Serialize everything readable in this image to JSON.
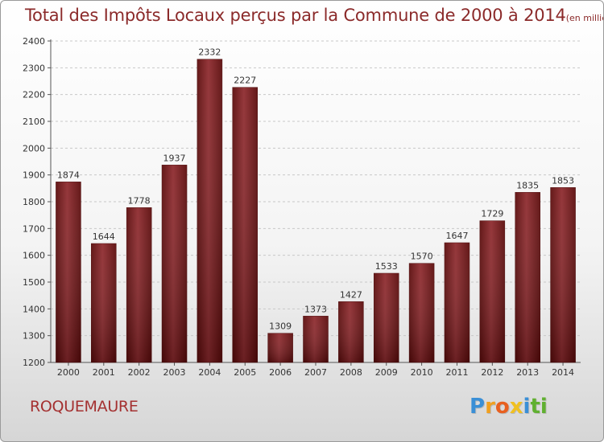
{
  "chart_data": {
    "type": "bar",
    "title": "Total des Impôts Locaux perçus par la Commune de 2000 à 2014",
    "unit": "(en milliers d'€)",
    "categories": [
      "2000",
      "2001",
      "2002",
      "2003",
      "2004",
      "2005",
      "2006",
      "2007",
      "2008",
      "2009",
      "2010",
      "2011",
      "2012",
      "2013",
      "2014"
    ],
    "values": [
      1874,
      1644,
      1778,
      1937,
      2332,
      2227,
      1309,
      1373,
      1427,
      1533,
      1570,
      1647,
      1729,
      1835,
      1853
    ],
    "ylim": [
      1200,
      2400
    ],
    "yticks": [
      1200,
      1300,
      1400,
      1500,
      1600,
      1700,
      1800,
      1900,
      2000,
      2100,
      2200,
      2300,
      2400
    ],
    "xlabel": "",
    "ylabel": "",
    "grid": "horizontal dashed",
    "bar_color": "#7a1a1a"
  },
  "commune": "ROQUEMAURE",
  "logo": {
    "letters": [
      {
        "char": "P",
        "color": "#3a8fd6"
      },
      {
        "char": "r",
        "color": "#f0a020"
      },
      {
        "char": "o",
        "color": "#e86020"
      },
      {
        "char": "x",
        "color": "#f0c020"
      },
      {
        "char": "i",
        "color": "#3a8fd6"
      },
      {
        "char": "t",
        "color": "#60b030"
      },
      {
        "char": "i",
        "color": "#60b030"
      }
    ]
  }
}
